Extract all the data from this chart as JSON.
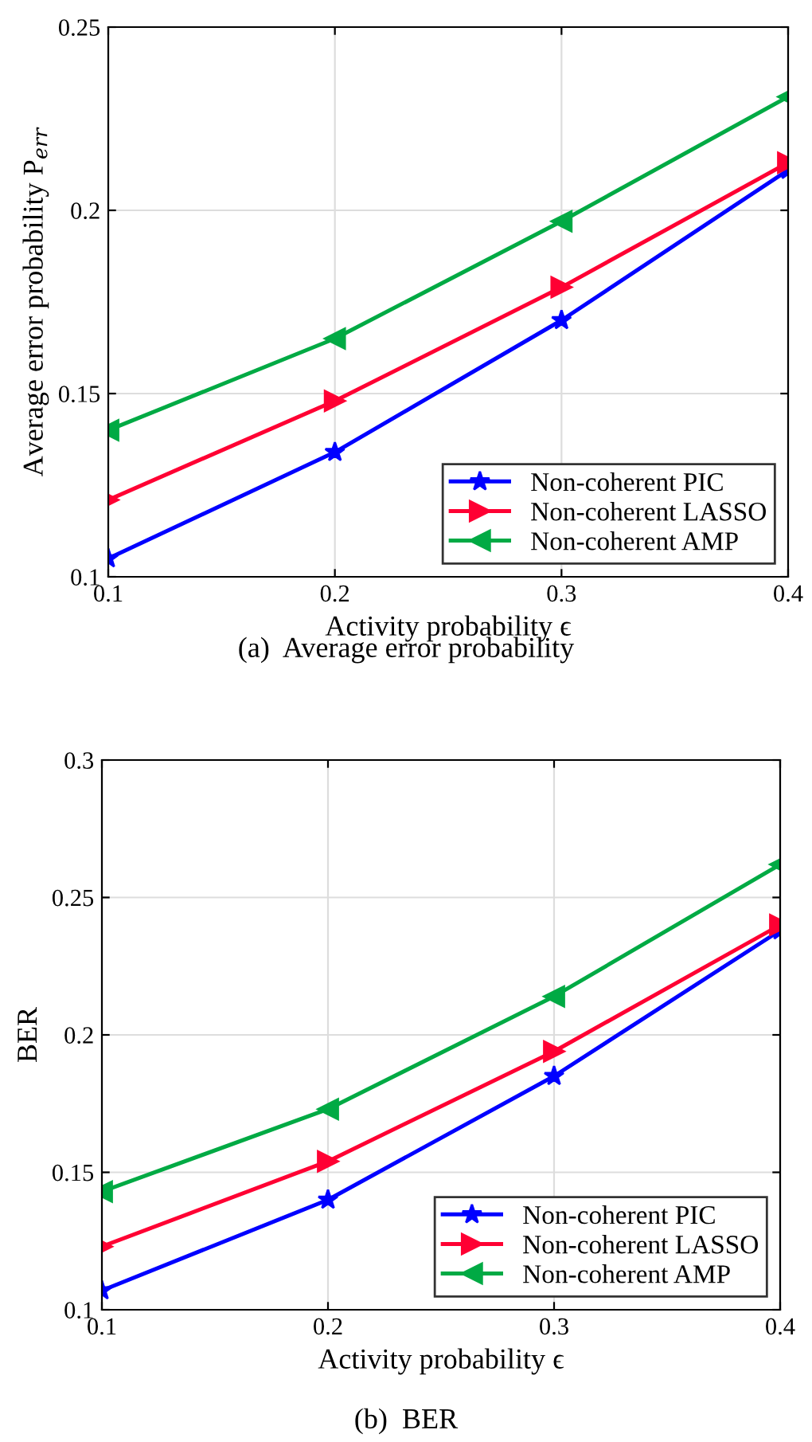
{
  "chart_data": [
    {
      "type": "line",
      "xlabel": "Activity probability ϵ",
      "ylabel": "Average error probability P$_{err}$",
      "annotations": [
        "(a)  Average error probability"
      ],
      "x": [
        0.1,
        0.2,
        0.3,
        0.4
      ],
      "xlim": [
        0.1,
        0.4
      ],
      "xticks": [
        0.1,
        0.2,
        0.3,
        0.4
      ],
      "ylim": [
        0.1,
        0.25
      ],
      "yticks": [
        0.1,
        0.15,
        0.2,
        0.25
      ],
      "grid": true,
      "legend": "bottom right",
      "line_style": "solid",
      "series": [
        {
          "name": "Non-coherent PIC",
          "color": "#0000ff",
          "marker": "star",
          "values": [
            0.105,
            0.134,
            0.17,
            0.211
          ]
        },
        {
          "name": "Non-coherent LASSO",
          "color": "#ff0033",
          "marker": "triangle-right",
          "values": [
            0.121,
            0.148,
            0.179,
            0.213
          ]
        },
        {
          "name": "Non-coherent AMP",
          "color": "#00aa44",
          "marker": "triangle-left",
          "values": [
            0.14,
            0.165,
            0.197,
            0.231
          ]
        }
      ]
    },
    {
      "type": "line",
      "xlabel": "Activity probability ϵ",
      "ylabel": "BER",
      "annotations": [
        "(b)  BER"
      ],
      "x": [
        0.1,
        0.2,
        0.3,
        0.4
      ],
      "xlim": [
        0.1,
        0.4
      ],
      "xticks": [
        0.1,
        0.2,
        0.3,
        0.4
      ],
      "ylim": [
        0.1,
        0.3
      ],
      "yticks": [
        0.1,
        0.15,
        0.2,
        0.25,
        0.3
      ],
      "grid": true,
      "legend": "bottom right",
      "line_style": "solid",
      "series": [
        {
          "name": "Non-coherent PIC",
          "color": "#0000ff",
          "marker": "star",
          "values": [
            0.107,
            0.14,
            0.185,
            0.238
          ]
        },
        {
          "name": "Non-coherent LASSO",
          "color": "#ff0033",
          "marker": "triangle-right",
          "values": [
            0.123,
            0.154,
            0.194,
            0.24
          ]
        },
        {
          "name": "Non-coherent AMP",
          "color": "#00aa44",
          "marker": "triangle-left",
          "values": [
            0.143,
            0.173,
            0.214,
            0.262
          ]
        }
      ]
    }
  ]
}
